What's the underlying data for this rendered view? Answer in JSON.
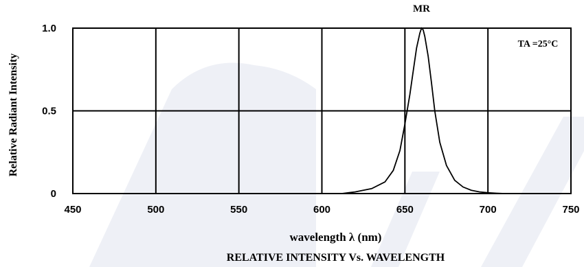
{
  "chart_data": {
    "type": "line",
    "title": "RELATIVE INTENSITY Vs. WAVELENGTH",
    "xlabel": "wavelength  λ (nm)",
    "ylabel": "Relative  Radiant  Intensity",
    "xlim": [
      450,
      750
    ],
    "ylim": [
      0,
      1.0
    ],
    "x_ticks": [
      "450",
      "500",
      "550",
      "600",
      "650",
      "700",
      "750"
    ],
    "y_ticks": [
      "0",
      "0.5",
      "1.0"
    ],
    "grid": true,
    "annotation": "TA =25°C",
    "series": [
      {
        "name": "MR",
        "x": [
          612,
          620,
          630,
          638,
          643,
          647,
          650,
          653,
          655,
          657,
          659,
          660,
          661,
          662,
          664,
          666,
          668,
          671,
          675,
          680,
          685,
          690,
          695,
          700,
          705,
          710
        ],
        "y": [
          0.0,
          0.01,
          0.03,
          0.07,
          0.14,
          0.26,
          0.42,
          0.6,
          0.74,
          0.88,
          0.97,
          1.0,
          0.99,
          0.95,
          0.83,
          0.67,
          0.5,
          0.31,
          0.17,
          0.08,
          0.04,
          0.02,
          0.01,
          0.005,
          0.002,
          0.0
        ]
      }
    ]
  }
}
